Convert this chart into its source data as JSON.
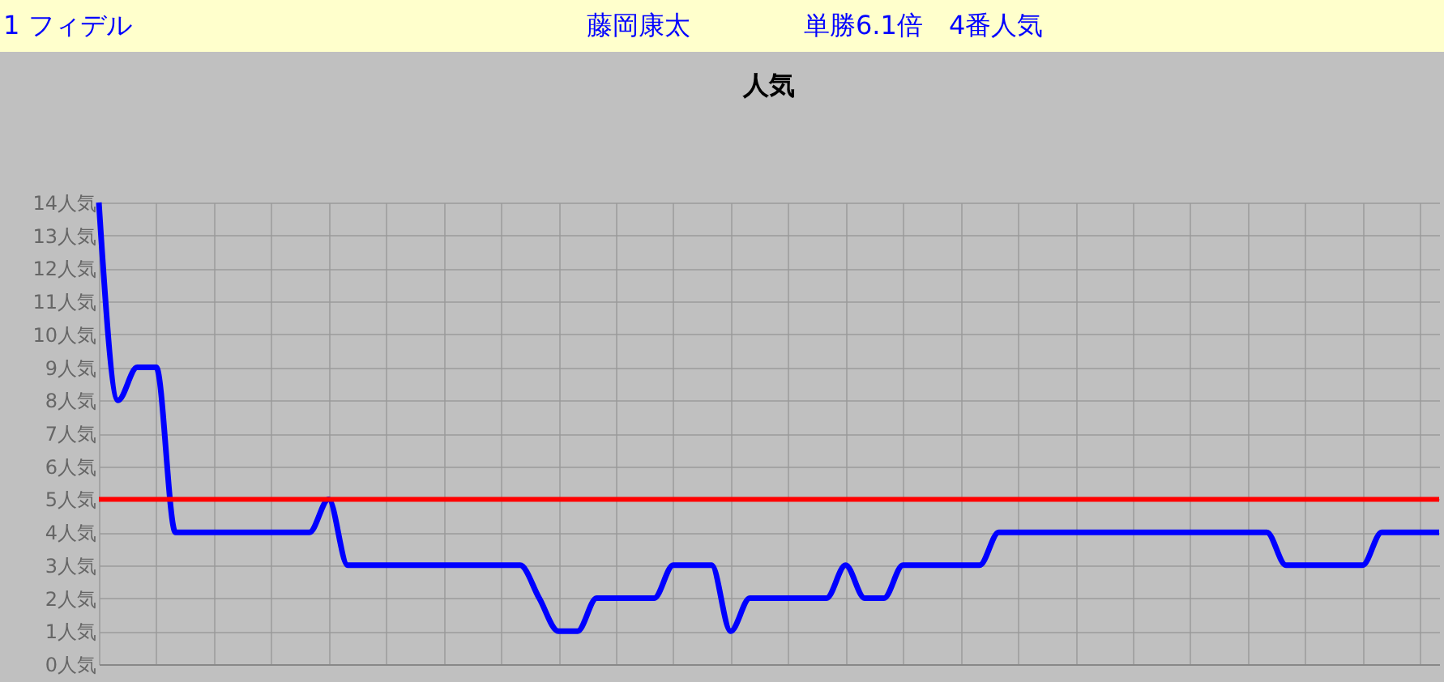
{
  "chart_data": {
    "type": "line",
    "title": "人気",
    "annotations": [
      "1 フィデル",
      "藤岡康太",
      "単勝6.1倍　4番人気"
    ],
    "categories": [
      null,
      null,
      null,
      null,
      null,
      null,
      null,
      null,
      null,
      null,
      null,
      null,
      null,
      null,
      null,
      null,
      null,
      null,
      null,
      null,
      null,
      null,
      null,
      null,
      null,
      null,
      null,
      null,
      null,
      null,
      null,
      null,
      null,
      null,
      null,
      null,
      null,
      null,
      null,
      null,
      null,
      null,
      null,
      null,
      null,
      null,
      null,
      null,
      null,
      null,
      null,
      null,
      null,
      null,
      null,
      null,
      null,
      null,
      null,
      null,
      null,
      null,
      null,
      null,
      null,
      null,
      null,
      null,
      null,
      null,
      null
    ],
    "series": [
      {
        "color": "#0000ff",
        "values": [
          14,
          8,
          9,
          9,
          4,
          4,
          4,
          4,
          4,
          4,
          4,
          4,
          5,
          3,
          3,
          3,
          3,
          3,
          3,
          3,
          3,
          3,
          3,
          2,
          1,
          1,
          2,
          2,
          2,
          2,
          3,
          3,
          3,
          1,
          2,
          2,
          2,
          2,
          2,
          3,
          2,
          2,
          3,
          3,
          3,
          3,
          3,
          4,
          4,
          4,
          4,
          4,
          4,
          4,
          4,
          4,
          4,
          4,
          4,
          4,
          4,
          4,
          3,
          3,
          3,
          3,
          3,
          4,
          4,
          4,
          4
        ]
      }
    ],
    "ylim": [
      0,
      14
    ],
    "yticks": [
      {
        "value": 0,
        "label": "0人気"
      },
      {
        "value": 1,
        "label": "1人気"
      },
      {
        "value": 2,
        "label": "2人気"
      },
      {
        "value": 3,
        "label": "3人気"
      },
      {
        "value": 4,
        "label": "4人気"
      },
      {
        "value": 5,
        "label": "5人気"
      },
      {
        "value": 6,
        "label": "6人気"
      },
      {
        "value": 7,
        "label": "7人気"
      },
      {
        "value": 8,
        "label": "8人気"
      },
      {
        "value": 9,
        "label": "9人気"
      },
      {
        "value": 10,
        "label": "10人気"
      },
      {
        "value": 11,
        "label": "11人気"
      },
      {
        "value": 12,
        "label": "12人気"
      },
      {
        "value": 13,
        "label": "13人気"
      },
      {
        "value": 14,
        "label": "14人気"
      }
    ],
    "tick_labels": "y",
    "grid": true,
    "marker": "none",
    "line_style": "solid",
    "ref_lines": [
      {
        "axis": "y",
        "value": 5,
        "color": "#ff0000"
      }
    ]
  }
}
